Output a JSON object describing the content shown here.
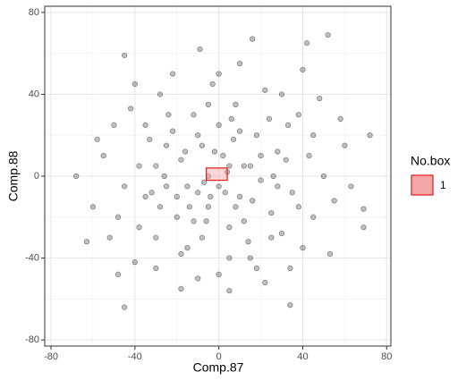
{
  "chart_data": {
    "type": "scatter",
    "x_label": "Comp.87",
    "y_label": "Comp.88",
    "xlim": [
      -83,
      82
    ],
    "ylim": [
      -83,
      83
    ],
    "xticks": [
      -80,
      -40,
      0,
      40,
      80
    ],
    "yticks": [
      -80,
      -40,
      0,
      40,
      80
    ],
    "minor_grid": [
      -60,
      -20,
      20,
      60
    ],
    "grid": true,
    "point_color": "#000000",
    "series": [
      {
        "x": [
          -68,
          72,
          -63,
          53,
          52,
          16,
          -9,
          42,
          -45,
          -45,
          34,
          69,
          69,
          5,
          -18,
          -60,
          -55,
          -50,
          -48,
          -42,
          -40,
          -38,
          -35,
          -33,
          -30,
          -28,
          -25,
          -22,
          -20,
          -18,
          -15,
          -12,
          -10,
          -8,
          -5,
          -3,
          0,
          2,
          5,
          8,
          10,
          12,
          15,
          18,
          20,
          22,
          25,
          28,
          30,
          33,
          35,
          38,
          40,
          43,
          45,
          48,
          50,
          55,
          60,
          63,
          -30,
          -20,
          -10,
          0,
          10,
          20,
          25,
          15,
          5,
          -5,
          -15,
          -25,
          -35,
          -45,
          -5,
          5,
          12,
          -12,
          -18,
          18,
          30,
          -30,
          0,
          0,
          -8,
          8,
          -2,
          3,
          -7,
          7,
          28,
          -28,
          38,
          -38,
          24,
          -24,
          14,
          -14,
          32,
          -32,
          45,
          -52,
          58,
          -58,
          40,
          -22,
          22,
          -40,
          10,
          -10,
          4,
          -4,
          16,
          -16,
          26,
          -26,
          6,
          -6,
          34,
          -48
        ],
        "y": [
          0,
          20,
          -32,
          -38,
          69,
          67,
          62,
          65,
          59,
          -64,
          -63,
          -16,
          -25,
          -56,
          -55,
          -15,
          10,
          25,
          -20,
          33,
          -42,
          5,
          -10,
          18,
          -30,
          40,
          -5,
          22,
          -20,
          8,
          -35,
          30,
          -8,
          15,
          -15,
          45,
          -5,
          10,
          -25,
          35,
          -10,
          5,
          -40,
          20,
          -2,
          42,
          -18,
          12,
          -28,
          25,
          -8,
          30,
          -35,
          10,
          -20,
          38,
          0,
          -12,
          15,
          -5,
          5,
          -10,
          20,
          25,
          22,
          10,
          -30,
          5,
          5,
          0,
          -5,
          15,
          25,
          -5,
          35,
          -40,
          -22,
          -22,
          -38,
          -45,
          40,
          -45,
          -48,
          50,
          -30,
          -15,
          12,
          -8,
          -3,
          18,
          -5,
          -15,
          -15,
          -25,
          28,
          30,
          -32,
          -15,
          8,
          -8,
          20,
          -30,
          28,
          18,
          52,
          50,
          -52,
          45,
          55,
          -50,
          2,
          -10,
          -12,
          12,
          0,
          0,
          28,
          -22,
          -45,
          -48
        ]
      }
    ],
    "box": {
      "xmin": -6,
      "xmax": 4,
      "ymin": -2,
      "ymax": 4,
      "color": "#e31a1c",
      "fill": "#f4a6a6"
    },
    "legend": {
      "title": "No.box",
      "labels": [
        "1"
      ]
    }
  }
}
